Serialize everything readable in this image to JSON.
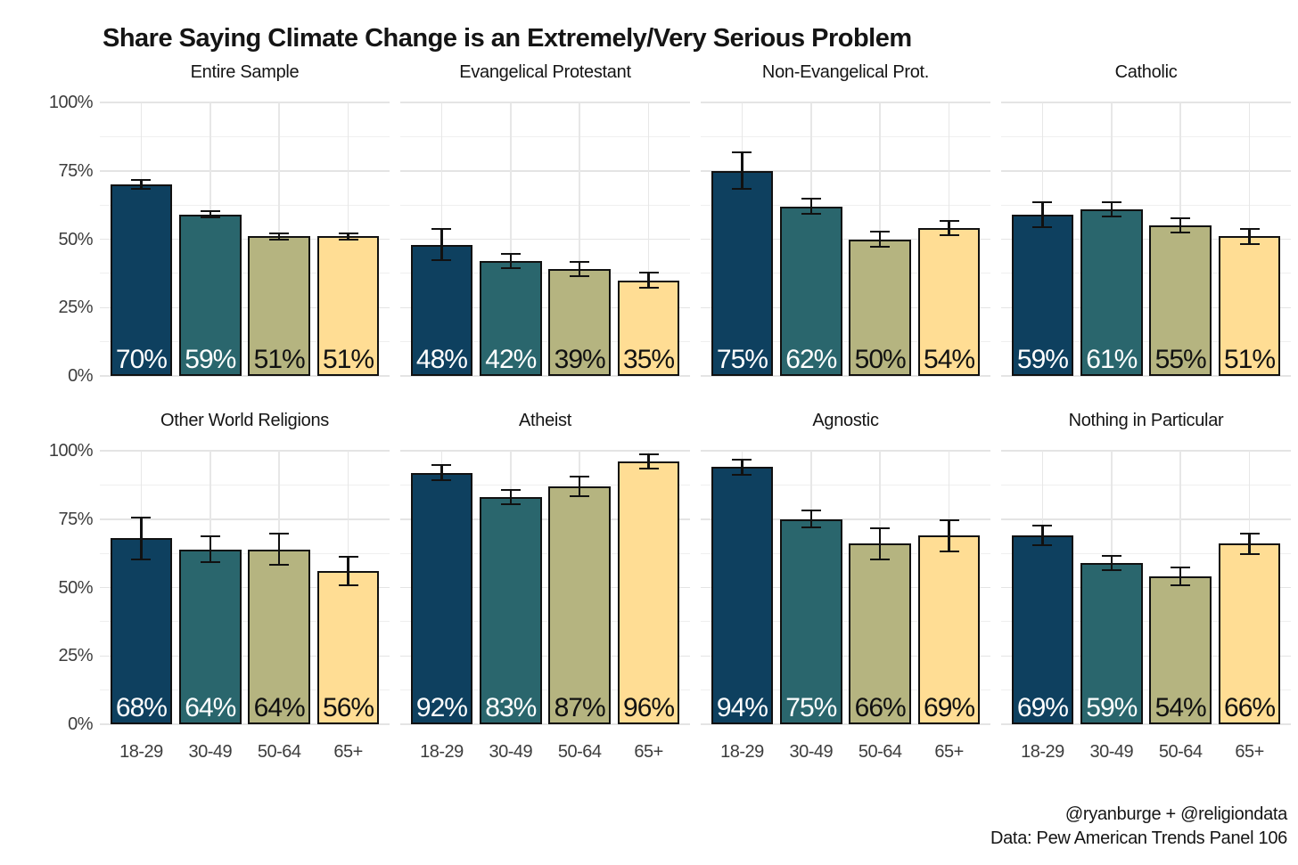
{
  "title": "Share Saying Climate Change is an Extremely/Very Serious Problem",
  "attribution": {
    "line1": "@ryanburge + @religiondata",
    "line2": "Data: Pew American Trends Panel 106"
  },
  "chart_data": {
    "type": "bar",
    "title": "Share Saying Climate Change is an Extremely/Very Serious Problem",
    "categories": [
      "18-29",
      "30-49",
      "50-64",
      "65+"
    ],
    "series_colors": [
      "#0e405f",
      "#2a666d",
      "#b5b480",
      "#ffdd94"
    ],
    "bar_label_colors": [
      "#ffffff",
      "#ffffff",
      "#111111",
      "#111111"
    ],
    "bar_outline_color": "#111111",
    "ylim": [
      0,
      100
    ],
    "yticks": [
      0,
      25,
      50,
      75,
      100
    ],
    "ytick_labels": [
      "0%",
      "25%",
      "50%",
      "75%",
      "100%"
    ],
    "grid": "major and minor horizontal, vertical at category centers",
    "legend": "none",
    "error_bars": true,
    "facets": [
      {
        "name": "Entire Sample",
        "values": [
          70,
          59,
          51,
          51
        ],
        "labels": [
          "70%",
          "59%",
          "51%",
          "51%"
        ],
        "errors": [
          2,
          1.5,
          1.5,
          1.5
        ]
      },
      {
        "name": "Evangelical Protestant",
        "values": [
          48,
          42,
          39,
          35
        ],
        "labels": [
          "48%",
          "42%",
          "39%",
          "35%"
        ],
        "errors": [
          6,
          3,
          3,
          3
        ]
      },
      {
        "name": "Non-Evangelical Prot.",
        "values": [
          75,
          62,
          50,
          54
        ],
        "labels": [
          "75%",
          "62%",
          "50%",
          "54%"
        ],
        "errors": [
          7,
          3,
          3,
          3
        ]
      },
      {
        "name": "Catholic",
        "values": [
          59,
          61,
          55,
          51
        ],
        "labels": [
          "59%",
          "61%",
          "55%",
          "51%"
        ],
        "errors": [
          5,
          3,
          3,
          3
        ]
      },
      {
        "name": "Other World Religions",
        "values": [
          68,
          64,
          64,
          56
        ],
        "labels": [
          "68%",
          "64%",
          "64%",
          "56%"
        ],
        "errors": [
          8,
          5,
          6,
          5.5
        ]
      },
      {
        "name": "Atheist",
        "values": [
          92,
          83,
          87,
          96
        ],
        "labels": [
          "92%",
          "83%",
          "87%",
          "96%"
        ],
        "errors": [
          3,
          3,
          4,
          3
        ]
      },
      {
        "name": "Agnostic",
        "values": [
          94,
          75,
          66,
          69
        ],
        "labels": [
          "94%",
          "75%",
          "66%",
          "69%"
        ],
        "errors": [
          3,
          3.5,
          6,
          6
        ]
      },
      {
        "name": "Nothing in Particular",
        "values": [
          69,
          59,
          54,
          66
        ],
        "labels": [
          "69%",
          "59%",
          "54%",
          "66%"
        ],
        "errors": [
          4,
          3,
          3.5,
          4
        ]
      }
    ]
  }
}
